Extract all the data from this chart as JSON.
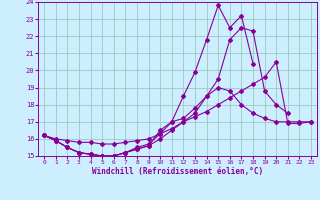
{
  "xlabel": "Windchill (Refroidissement éolien,°C)",
  "xlim": [
    -0.5,
    23.5
  ],
  "ylim": [
    15,
    24
  ],
  "yticks": [
    15,
    16,
    17,
    18,
    19,
    20,
    21,
    22,
    23,
    24
  ],
  "xticks": [
    0,
    1,
    2,
    3,
    4,
    5,
    6,
    7,
    8,
    9,
    10,
    11,
    12,
    13,
    14,
    15,
    16,
    17,
    18,
    19,
    20,
    21,
    22,
    23
  ],
  "background_color": "#cceeff",
  "grid_color": "#99ccbb",
  "line_color": "#880099",
  "lines": [
    {
      "x": [
        0,
        1,
        2,
        3,
        4,
        5,
        6,
        7,
        8,
        9,
        10,
        11,
        12,
        13,
        14,
        15,
        16,
        17,
        18
      ],
      "y": [
        16.2,
        15.9,
        15.5,
        15.2,
        15.1,
        15.0,
        15.0,
        15.2,
        15.4,
        15.6,
        16.5,
        17.0,
        18.5,
        19.9,
        21.8,
        23.8,
        22.5,
        23.2,
        20.4
      ]
    },
    {
      "x": [
        0,
        1,
        2,
        3,
        4,
        5,
        6,
        7,
        8,
        9,
        10,
        11,
        12,
        13,
        14,
        15,
        16,
        17,
        18,
        19,
        20,
        21,
        22,
        23
      ],
      "y": [
        16.2,
        15.9,
        15.5,
        15.2,
        15.1,
        15.0,
        15.0,
        15.2,
        15.4,
        15.6,
        16.0,
        16.5,
        17.0,
        17.5,
        18.5,
        19.0,
        18.8,
        18.0,
        17.5,
        17.2,
        17.0,
        17.0,
        17.0,
        17.0
      ]
    },
    {
      "x": [
        0,
        1,
        2,
        3,
        4,
        5,
        6,
        7,
        8,
        9,
        10,
        11,
        12,
        13,
        14,
        15,
        16,
        17,
        18,
        19,
        20,
        21
      ],
      "y": [
        16.2,
        15.9,
        15.5,
        15.2,
        15.1,
        15.0,
        15.0,
        15.2,
        15.5,
        15.7,
        16.3,
        17.0,
        17.2,
        17.8,
        18.5,
        19.5,
        21.8,
        22.5,
        22.3,
        18.8,
        18.0,
        17.5
      ]
    },
    {
      "x": [
        0,
        1,
        2,
        3,
        4,
        5,
        6,
        7,
        8,
        9,
        10,
        11,
        12,
        13,
        14,
        15,
        16,
        17,
        18,
        19,
        20,
        21,
        22,
        23
      ],
      "y": [
        16.2,
        16.0,
        15.9,
        15.8,
        15.8,
        15.7,
        15.7,
        15.8,
        15.9,
        16.0,
        16.3,
        16.6,
        17.0,
        17.3,
        17.6,
        18.0,
        18.4,
        18.8,
        19.2,
        19.6,
        20.5,
        16.9,
        16.9,
        17.0
      ]
    }
  ]
}
